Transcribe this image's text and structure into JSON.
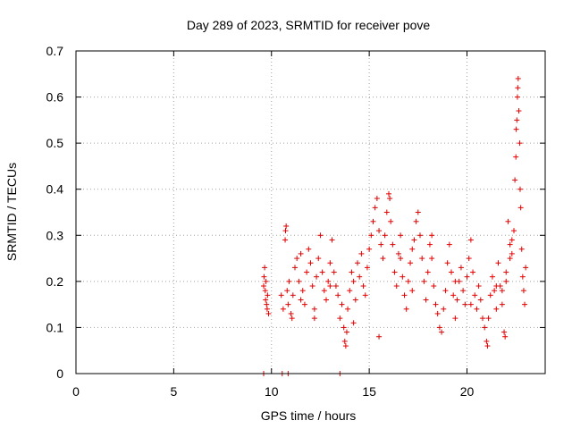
{
  "chart_data": {
    "type": "scatter",
    "title": "Day 289 of 2023, SRMTID for receiver pove",
    "xlabel": "GPS time / hours",
    "ylabel": "SRMTID / TECUs",
    "xlim": [
      0,
      24
    ],
    "ylim": [
      0,
      0.7
    ],
    "xticks": [
      0,
      5,
      10,
      15,
      20
    ],
    "xtick_labels": [
      "0",
      "5",
      "10",
      "15",
      "20"
    ],
    "yticks": [
      0,
      0.1,
      0.2,
      0.3,
      0.4,
      0.5,
      0.6,
      0.7
    ],
    "ytick_labels": [
      "0",
      "0.1",
      "0.2",
      "0.3",
      "0.4",
      "0.5",
      "0.6",
      "0.7"
    ],
    "grid": true,
    "marker": "plus",
    "marker_color": "#e00000",
    "series": [
      {
        "name": "SRMTID",
        "points": [
          [
            9.6,
            0.19
          ],
          [
            9.62,
            0.21
          ],
          [
            9.65,
            0.23
          ],
          [
            9.68,
            0.18
          ],
          [
            9.7,
            0.16
          ],
          [
            9.72,
            0.2
          ],
          [
            9.75,
            0.15
          ],
          [
            9.78,
            0.14
          ],
          [
            9.8,
            0.17
          ],
          [
            9.85,
            0.13
          ],
          [
            10.5,
            0.17
          ],
          [
            10.6,
            0.14
          ],
          [
            10.7,
            0.29
          ],
          [
            10.72,
            0.31
          ],
          [
            10.75,
            0.32
          ],
          [
            10.8,
            0.18
          ],
          [
            10.85,
            0.15
          ],
          [
            10.9,
            0.2
          ],
          [
            11.0,
            0.13
          ],
          [
            11.05,
            0.12
          ],
          [
            11.1,
            0.17
          ],
          [
            11.2,
            0.23
          ],
          [
            11.3,
            0.25
          ],
          [
            11.4,
            0.2
          ],
          [
            11.5,
            0.26
          ],
          [
            11.6,
            0.18
          ],
          [
            11.7,
            0.15
          ],
          [
            11.8,
            0.22
          ],
          [
            11.9,
            0.27
          ],
          [
            12.0,
            0.24
          ],
          [
            12.1,
            0.19
          ],
          [
            12.2,
            0.14
          ],
          [
            12.3,
            0.21
          ],
          [
            12.4,
            0.25
          ],
          [
            12.5,
            0.3
          ],
          [
            12.6,
            0.22
          ],
          [
            12.7,
            0.18
          ],
          [
            12.8,
            0.16
          ],
          [
            12.9,
            0.2
          ],
          [
            13.0,
            0.24
          ],
          [
            13.1,
            0.29
          ],
          [
            13.2,
            0.22
          ],
          [
            13.3,
            0.19
          ],
          [
            13.4,
            0.17
          ],
          [
            13.5,
            0.12
          ],
          [
            13.6,
            0.15
          ],
          [
            13.7,
            0.1
          ],
          [
            13.75,
            0.07
          ],
          [
            13.8,
            0.06
          ],
          [
            13.85,
            0.09
          ],
          [
            13.9,
            0.14
          ],
          [
            14.0,
            0.18
          ],
          [
            14.1,
            0.22
          ],
          [
            14.2,
            0.2
          ],
          [
            14.3,
            0.16
          ],
          [
            14.4,
            0.24
          ],
          [
            14.5,
            0.21
          ],
          [
            14.6,
            0.26
          ],
          [
            14.7,
            0.19
          ],
          [
            14.8,
            0.17
          ],
          [
            14.9,
            0.23
          ],
          [
            15.0,
            0.27
          ],
          [
            15.1,
            0.3
          ],
          [
            15.2,
            0.33
          ],
          [
            15.3,
            0.36
          ],
          [
            15.4,
            0.38
          ],
          [
            15.5,
            0.31
          ],
          [
            15.6,
            0.28
          ],
          [
            15.7,
            0.25
          ],
          [
            15.8,
            0.3
          ],
          [
            15.9,
            0.35
          ],
          [
            16.0,
            0.39
          ],
          [
            16.05,
            0.38
          ],
          [
            16.1,
            0.33
          ],
          [
            16.2,
            0.28
          ],
          [
            16.3,
            0.22
          ],
          [
            16.4,
            0.19
          ],
          [
            16.5,
            0.26
          ],
          [
            16.6,
            0.3
          ],
          [
            16.7,
            0.21
          ],
          [
            16.8,
            0.17
          ],
          [
            16.9,
            0.14
          ],
          [
            17.0,
            0.2
          ],
          [
            17.1,
            0.24
          ],
          [
            17.2,
            0.27
          ],
          [
            17.3,
            0.29
          ],
          [
            17.4,
            0.33
          ],
          [
            17.5,
            0.35
          ],
          [
            17.6,
            0.3
          ],
          [
            17.7,
            0.25
          ],
          [
            17.8,
            0.2
          ],
          [
            17.9,
            0.16
          ],
          [
            18.0,
            0.22
          ],
          [
            18.1,
            0.28
          ],
          [
            18.2,
            0.25
          ],
          [
            18.3,
            0.19
          ],
          [
            18.4,
            0.15
          ],
          [
            18.5,
            0.13
          ],
          [
            18.6,
            0.1
          ],
          [
            18.7,
            0.09
          ],
          [
            18.8,
            0.14
          ],
          [
            18.9,
            0.18
          ],
          [
            19.0,
            0.24
          ],
          [
            19.1,
            0.28
          ],
          [
            19.2,
            0.22
          ],
          [
            19.3,
            0.17
          ],
          [
            19.4,
            0.12
          ],
          [
            19.5,
            0.16
          ],
          [
            19.6,
            0.2
          ],
          [
            19.7,
            0.23
          ],
          [
            19.8,
            0.18
          ],
          [
            19.9,
            0.15
          ],
          [
            20.0,
            0.21
          ],
          [
            20.1,
            0.25
          ],
          [
            20.2,
            0.29
          ],
          [
            20.3,
            0.22
          ],
          [
            20.4,
            0.17
          ],
          [
            20.5,
            0.14
          ],
          [
            20.6,
            0.19
          ],
          [
            20.7,
            0.16
          ],
          [
            20.8,
            0.12
          ],
          [
            20.9,
            0.1
          ],
          [
            21.0,
            0.07
          ],
          [
            21.05,
            0.06
          ],
          [
            21.1,
            0.12
          ],
          [
            21.2,
            0.17
          ],
          [
            21.3,
            0.21
          ],
          [
            21.4,
            0.18
          ],
          [
            21.5,
            0.14
          ],
          [
            21.6,
            0.24
          ],
          [
            21.7,
            0.19
          ],
          [
            21.8,
            0.15
          ],
          [
            21.9,
            0.09
          ],
          [
            21.95,
            0.08
          ],
          [
            22.0,
            0.2
          ],
          [
            22.1,
            0.33
          ],
          [
            22.2,
            0.28
          ],
          [
            22.3,
            0.26
          ],
          [
            22.4,
            0.31
          ],
          [
            22.45,
            0.42
          ],
          [
            22.5,
            0.47
          ],
          [
            22.52,
            0.53
          ],
          [
            22.55,
            0.55
          ],
          [
            22.58,
            0.6
          ],
          [
            22.6,
            0.62
          ],
          [
            22.62,
            0.64
          ],
          [
            22.65,
            0.57
          ],
          [
            22.7,
            0.5
          ],
          [
            22.72,
            0.4
          ],
          [
            22.75,
            0.36
          ],
          [
            22.8,
            0.27
          ],
          [
            22.85,
            0.21
          ],
          [
            22.9,
            0.18
          ],
          [
            22.95,
            0.15
          ],
          [
            23.0,
            0.23
          ],
          [
            22.3,
            0.29
          ],
          [
            22.2,
            0.25
          ],
          [
            22.0,
            0.22
          ],
          [
            21.8,
            0.18
          ],
          [
            21.5,
            0.19
          ],
          [
            15.5,
            0.08
          ],
          [
            12.2,
            0.12
          ],
          [
            16.6,
            0.25
          ],
          [
            18.2,
            0.3
          ],
          [
            19.4,
            0.2
          ],
          [
            17.2,
            0.18
          ],
          [
            14.2,
            0.11
          ],
          [
            11.5,
            0.16
          ],
          [
            13.0,
            0.19
          ],
          [
            20.2,
            0.15
          ],
          [
            9.6,
            0.0
          ],
          [
            10.55,
            0.0
          ],
          [
            10.85,
            0.0
          ],
          [
            13.5,
            0.0
          ]
        ]
      }
    ]
  }
}
